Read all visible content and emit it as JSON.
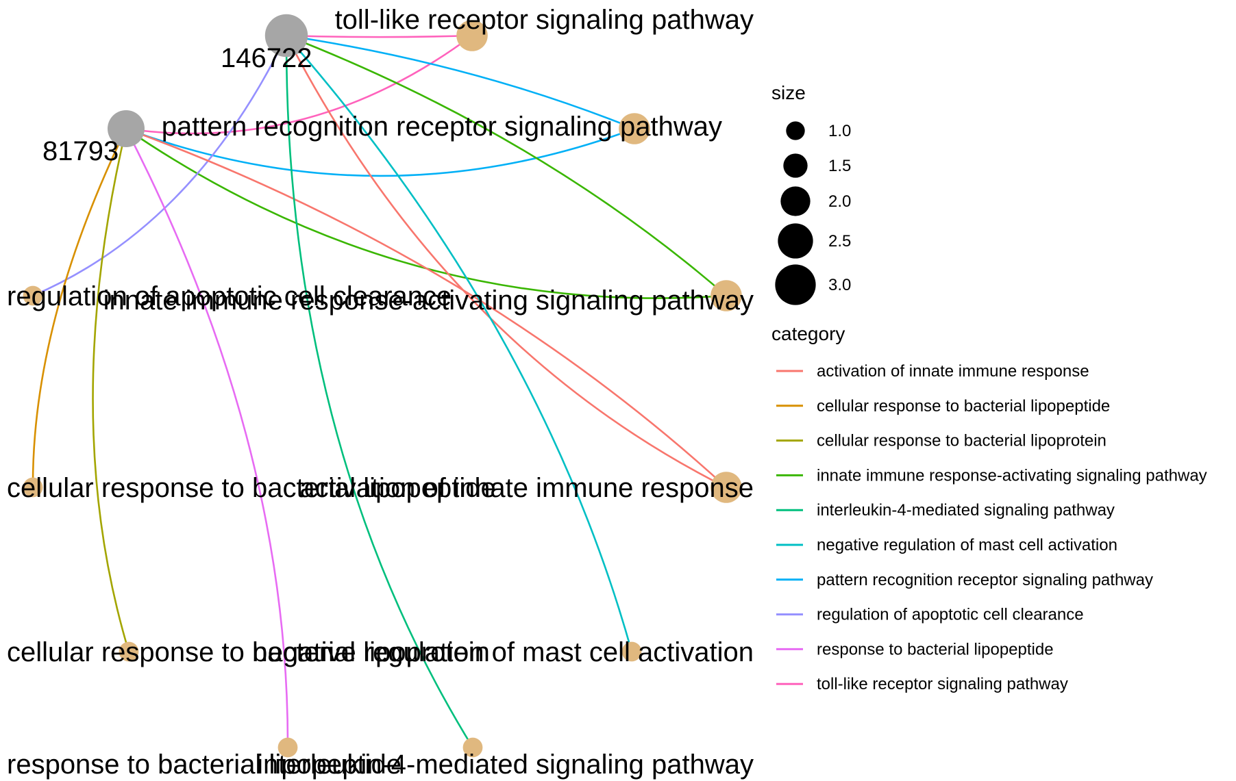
{
  "nodes": [
    {
      "id": "146722",
      "label": "146722",
      "type": "gene",
      "size": 3.0
    },
    {
      "id": "81793",
      "label": "81793",
      "type": "gene",
      "size": 2.5
    },
    {
      "id": "toll",
      "label": "toll-like receptor signaling pathway",
      "type": "category",
      "size": 2.0
    },
    {
      "id": "prr",
      "label": "pattern recognition receptor signaling pathway",
      "type": "category",
      "size": 2.0
    },
    {
      "id": "iirasp",
      "label": "innate immune response-activating signaling pathway",
      "type": "category",
      "size": 2.0
    },
    {
      "id": "raccl",
      "label": "regulation of apoptotic cell clearance",
      "type": "category",
      "size": 1.0
    },
    {
      "id": "aiir",
      "label": "activation of innate immune response",
      "type": "category",
      "size": 2.0
    },
    {
      "id": "crblpep",
      "label": "cellular response to bacterial lipopeptide",
      "type": "category",
      "size": 1.0
    },
    {
      "id": "nrmca",
      "label": "negative regulation of mast cell activation",
      "type": "category",
      "size": 1.0
    },
    {
      "id": "crblpro",
      "label": "cellular response to bacterial lipoprotein",
      "type": "category",
      "size": 1.0
    },
    {
      "id": "rblpep",
      "label": "response to bacterial lipopeptide",
      "type": "category",
      "size": 1.0
    },
    {
      "id": "il4",
      "label": "interleukin-4-mediated signaling pathway",
      "type": "category",
      "size": 1.0
    }
  ],
  "edges": [
    {
      "from": "146722",
      "to": "toll",
      "category": "toll-like receptor signaling pathway"
    },
    {
      "from": "81793",
      "to": "toll",
      "category": "toll-like receptor signaling pathway"
    },
    {
      "from": "146722",
      "to": "prr",
      "category": "pattern recognition receptor signaling pathway"
    },
    {
      "from": "81793",
      "to": "prr",
      "category": "pattern recognition receptor signaling pathway"
    },
    {
      "from": "146722",
      "to": "iirasp",
      "category": "innate immune response-activating signaling pathway"
    },
    {
      "from": "81793",
      "to": "iirasp",
      "category": "innate immune response-activating signaling pathway"
    },
    {
      "from": "146722",
      "to": "raccl",
      "category": "regulation of apoptotic cell clearance"
    },
    {
      "from": "146722",
      "to": "aiir",
      "category": "activation of innate immune response"
    },
    {
      "from": "81793",
      "to": "aiir",
      "category": "activation of innate immune response"
    },
    {
      "from": "81793",
      "to": "crblpep",
      "category": "cellular response to bacterial lipopeptide"
    },
    {
      "from": "146722",
      "to": "nrmca",
      "category": "negative regulation of mast cell activation"
    },
    {
      "from": "81793",
      "to": "crblpro",
      "category": "cellular response to bacterial lipoprotein"
    },
    {
      "from": "81793",
      "to": "rblpep",
      "category": "response to bacterial lipopeptide"
    },
    {
      "from": "146722",
      "to": "il4",
      "category": "interleukin-4-mediated signaling pathway"
    }
  ],
  "colors": {
    "gene_node": "#a6a6a6",
    "category_node": "#e0b87f",
    "categories": {
      "activation of innate immune response": "#f8766d",
      "cellular response to bacterial lipopeptide": "#d89000",
      "cellular response to bacterial lipoprotein": "#a3a500",
      "innate immune response-activating signaling pathway": "#39b600",
      "interleukin-4-mediated signaling pathway": "#00bf7d",
      "negative regulation of mast cell activation": "#00bfc4",
      "pattern recognition receptor signaling pathway": "#00b0f6",
      "regulation of apoptotic cell clearance": "#9590ff",
      "response to bacterial lipopeptide": "#e76bf3",
      "toll-like receptor signaling pathway": "#ff62bc"
    }
  },
  "legend": {
    "size_title": "size",
    "size_items": [
      {
        "label": "1.0",
        "value": 1.0
      },
      {
        "label": "1.5",
        "value": 1.5
      },
      {
        "label": "2.0",
        "value": 2.0
      },
      {
        "label": "2.5",
        "value": 2.5
      },
      {
        "label": "3.0",
        "value": 3.0
      }
    ],
    "category_title": "category",
    "category_items": [
      "activation of innate immune response",
      "cellular response to bacterial lipopeptide",
      "cellular response to bacterial lipoprotein",
      "innate immune response-activating signaling pathway",
      "interleukin-4-mediated signaling pathway",
      "negative regulation of mast cell activation",
      "pattern recognition receptor signaling pathway",
      "regulation of apoptotic cell clearance",
      "response to bacterial lipopeptide",
      "toll-like receptor signaling pathway"
    ]
  }
}
